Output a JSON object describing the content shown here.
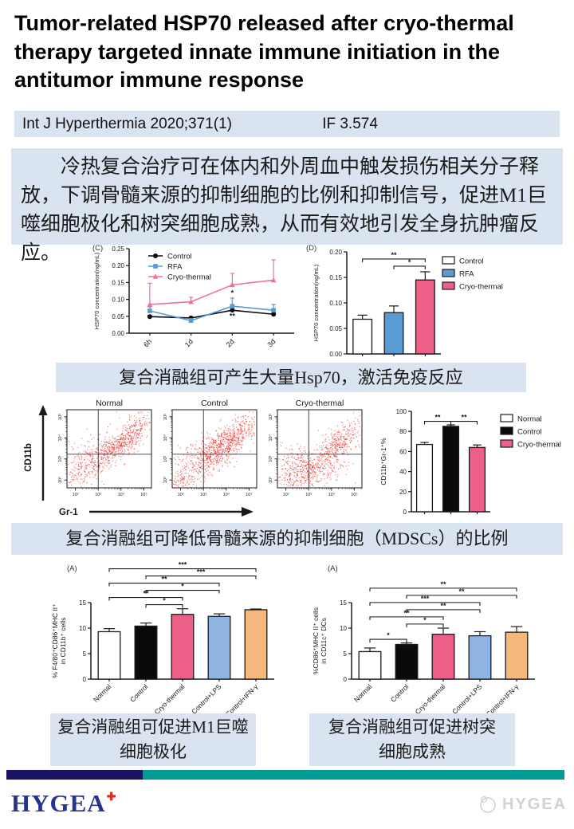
{
  "header": {
    "title": "Tumor-related HSP70 released after cryo-thermal therapy targeted innate immune initiation in the antitumor immune response",
    "citation": "Int J Hyperthermia 2020;371(1)",
    "impact_factor": "IF 3.574"
  },
  "abstract": {
    "text": "冷热复合治疗可在体内和外周血中触发损伤相关分子释放，下调骨髓来源的抑制细胞的比例和抑制信号，促进M1巨噬细胞极化和树突细胞成熟，从而有效地引发全身抗肿瘤反应。"
  },
  "captions": {
    "hsp70": "复合消融组可产生大量Hsp70，激活免疫反应",
    "mdsc": "复合消融组可降低骨髓来源的抑制细胞（MDSCs）的比例",
    "m1": [
      "复合消融组可促进M1巨噬",
      "细胞极化"
    ],
    "dc": [
      "复合消融组可促进树突",
      "细胞成熟"
    ]
  },
  "footer": {
    "logo": "HYGEA",
    "watermark": "HYGEA",
    "navy": "#1b1464",
    "teal": "#009b94"
  },
  "colors": {
    "light_blue_bg": "#dae4f0",
    "control_black": "#0a0a0a",
    "normal_white": "#ffffff",
    "rfa_blue": "#5b9bd5",
    "cryo_pink": "#ec5f87",
    "cryo_pink_line": "#f0719a",
    "lps_blue": "#8db4e2",
    "ifn_orange": "#f6b97d",
    "flow_dot_red": "#e8231f"
  },
  "chart_data": {
    "panelC": {
      "type": "line",
      "panel_label": "(C)",
      "ylabel": "HSP70 concentration(ng/mL)",
      "x": [
        "6h",
        "1d",
        "2d",
        "3d"
      ],
      "ylim": [
        0,
        0.25
      ],
      "yticks": [
        0,
        0.05,
        0.1,
        0.15,
        0.2,
        0.25
      ],
      "ytick_labels": [
        "0.00",
        "0.05",
        "0.10",
        "0.15",
        "0.20",
        "0.25"
      ],
      "legend_position": "top-left-inside",
      "series": [
        {
          "name": "Control",
          "color": "#0a0a0a",
          "marker": "circle",
          "values": [
            0.049,
            0.045,
            0.068,
            0.056
          ],
          "errors": [
            0.004,
            0.004,
            0.006,
            0.005
          ]
        },
        {
          "name": "RFA",
          "color": "#5b9bd5",
          "marker": "square",
          "values": [
            0.066,
            0.037,
            0.08,
            0.068
          ],
          "errors": [
            0.012,
            0.006,
            0.024,
            0.017
          ]
        },
        {
          "name": "Cryo-thermal",
          "color": "#f0719a",
          "marker": "triangle",
          "values": [
            0.085,
            0.093,
            0.143,
            0.157
          ],
          "errors": [
            0.063,
            0.013,
            0.034,
            0.06
          ]
        }
      ],
      "annotations": [
        {
          "text": "*",
          "xi": 2,
          "y": 0.112
        },
        {
          "text": "**",
          "xi": 2,
          "y": 0.044
        }
      ]
    },
    "panelD": {
      "type": "bar",
      "panel_label": "(D)",
      "ylabel": "HSP70 concentration(ng/mL)",
      "categories": [
        "Control",
        "RFA",
        "Cryo-thermal"
      ],
      "values": [
        0.068,
        0.081,
        0.145
      ],
      "errors": [
        0.008,
        0.013,
        0.016
      ],
      "colors": [
        "#ffffff",
        "#5b9bd5",
        "#ec5f87"
      ],
      "ylim": [
        0,
        0.2
      ],
      "yticks": [
        0,
        0.05,
        0.1,
        0.15,
        0.2
      ],
      "ytick_labels": [
        "0.00",
        "0.05",
        "0.10",
        "0.15",
        "0.20"
      ],
      "legend": [
        "Control",
        "RFA",
        "Cryo-thermal"
      ],
      "legend_position": "right",
      "bracket_base": 0.172,
      "brackets": [
        {
          "from": 1,
          "to": 2,
          "label": "*",
          "row": 0
        },
        {
          "from": 0,
          "to": 2,
          "label": "**",
          "row": 1
        }
      ]
    },
    "flow": {
      "type": "scatter_flow",
      "xlabel": "Gr-1",
      "ylabel": "CD11b",
      "tick_labels": [
        "10²",
        "10³",
        "10⁴",
        "10⁵"
      ],
      "gate_x": 0.37,
      "gate_y": 0.43,
      "dot_color": "#e8231f",
      "plots": [
        {
          "title": "Normal",
          "clusters": [
            [
              0.66,
              0.6,
              0.17,
              0.1,
              0.75,
              550
            ],
            [
              0.3,
              0.38,
              0.16,
              0.14,
              0.4,
              220
            ],
            [
              0.15,
              0.15,
              0.1,
              0.1,
              0.1,
              70
            ]
          ]
        },
        {
          "title": "Control",
          "clusters": [
            [
              0.65,
              0.58,
              0.18,
              0.11,
              0.75,
              650
            ],
            [
              0.33,
              0.33,
              0.18,
              0.15,
              0.4,
              280
            ],
            [
              0.12,
              0.1,
              0.08,
              0.06,
              0,
              60
            ]
          ]
        },
        {
          "title": "Cryo-thermal",
          "clusters": [
            [
              0.68,
              0.52,
              0.17,
              0.11,
              0.7,
              420
            ],
            [
              0.33,
              0.17,
              0.22,
              0.09,
              0.2,
              330
            ],
            [
              0.18,
              0.33,
              0.1,
              0.1,
              0.2,
              130
            ]
          ]
        }
      ]
    },
    "mdsc": {
      "type": "bar",
      "ylabel": "CD11b⁺Gr-1⁺%",
      "categories": [
        "Normal",
        "Control",
        "Cryo-thermal"
      ],
      "values": [
        67,
        85,
        64
      ],
      "errors": [
        2,
        1.5,
        2.5
      ],
      "colors": [
        "#ffffff",
        "#0a0a0a",
        "#ec5f87"
      ],
      "ylim": [
        0,
        100
      ],
      "yticks": [
        0,
        20,
        40,
        60,
        80,
        100
      ],
      "legend": [
        "Normal",
        "Control",
        "Cryo-thermal"
      ],
      "legend_position": "right",
      "bracket_base": 90,
      "brackets": [
        {
          "from": 0,
          "to": 1,
          "label": "**",
          "row": 0
        },
        {
          "from": 1,
          "to": 2,
          "label": "**",
          "row": 0
        }
      ]
    },
    "m1": {
      "type": "bar",
      "panel_label": "(A)",
      "ylabel_lines": [
        "% F4/80⁺CD86⁺MHC II⁺",
        "in CD11b⁺ cells"
      ],
      "categories": [
        "Normal",
        "Control",
        "Cryo-thermal",
        "Control+LPS",
        "Control+IFN-γ"
      ],
      "values": [
        9.3,
        10.4,
        12.7,
        12.3,
        13.6
      ],
      "errors": [
        0.6,
        0.6,
        1.1,
        0.5,
        0.15
      ],
      "colors": [
        "#ffffff",
        "#0a0a0a",
        "#ec5f87",
        "#8db4e2",
        "#f6b97d"
      ],
      "ylim": [
        0,
        15
      ],
      "yticks": [
        0,
        5,
        10,
        15
      ],
      "rotate_x": true,
      "bracket_base": 14.6,
      "brackets": [
        {
          "from": 1,
          "to": 2,
          "label": "*",
          "row": 0
        },
        {
          "from": 0,
          "to": 2,
          "label": "**",
          "row": 1
        },
        {
          "from": 1,
          "to": 3,
          "label": "*",
          "row": 2
        },
        {
          "from": 0,
          "to": 3,
          "label": "**",
          "row": 3
        },
        {
          "from": 1,
          "to": 4,
          "label": "***",
          "row": 4
        },
        {
          "from": 0,
          "to": 4,
          "label": "***",
          "row": 5
        }
      ]
    },
    "dc": {
      "type": "bar",
      "panel_label": "(A)",
      "ylabel_lines": [
        "%CD86⁺MHC II⁺ cells",
        "in CD11c⁺ DCs"
      ],
      "categories": [
        "Normal",
        "Control",
        "Cryo-thermal",
        "Control+LPS",
        "Control+IFN-γ"
      ],
      "values": [
        5.4,
        6.8,
        8.8,
        8.5,
        9.2
      ],
      "errors": [
        0.7,
        0.3,
        1.2,
        0.8,
        1.1
      ],
      "colors": [
        "#ffffff",
        "#0a0a0a",
        "#ec5f87",
        "#8db4e2",
        "#f6b97d"
      ],
      "ylim": [
        0,
        15
      ],
      "yticks": [
        0,
        5,
        10,
        15
      ],
      "rotate_x": true,
      "bracket_base": 10.8,
      "brackets": [
        {
          "from": 0,
          "to": 1,
          "label": "*",
          "y": 7.8
        },
        {
          "from": 1,
          "to": 2,
          "label": "*",
          "row": 0
        },
        {
          "from": 0,
          "to": 2,
          "label": "**",
          "row": 1
        },
        {
          "from": 1,
          "to": 3,
          "label": "**",
          "row": 2
        },
        {
          "from": 0,
          "to": 3,
          "label": "***",
          "row": 3
        },
        {
          "from": 1,
          "to": 4,
          "label": "**",
          "row": 4
        },
        {
          "from": 0,
          "to": 4,
          "label": "**",
          "row": 5
        }
      ]
    }
  }
}
